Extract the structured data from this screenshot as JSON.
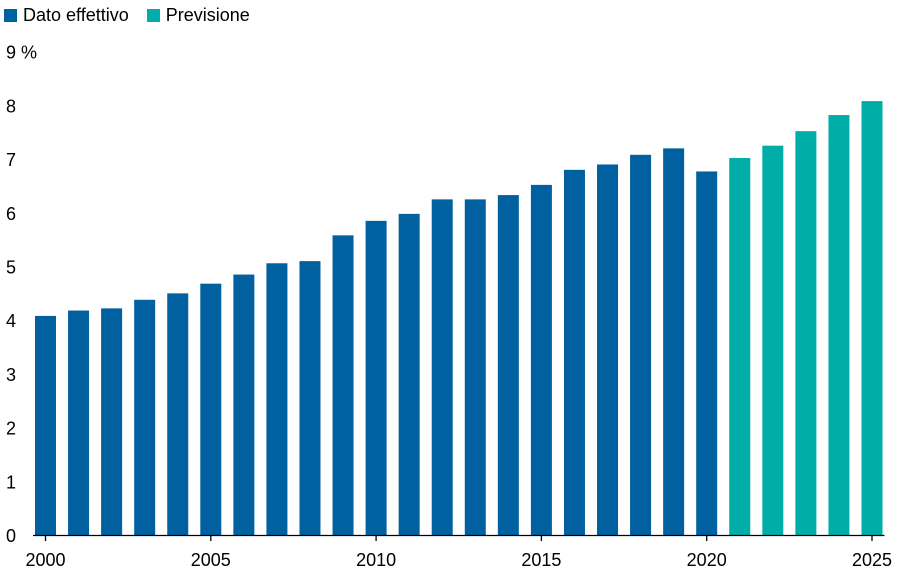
{
  "chart_data": {
    "type": "bar",
    "categories": [
      "2000",
      "2001",
      "2002",
      "2003",
      "2004",
      "2005",
      "2006",
      "2007",
      "2008",
      "2009",
      "2010",
      "2011",
      "2012",
      "2013",
      "2014",
      "2015",
      "2016",
      "2017",
      "2018",
      "2019",
      "2020",
      "2021",
      "2022",
      "2023",
      "2024",
      "2025"
    ],
    "series": [
      {
        "name": "Dato effettivo",
        "color": "#0060a0",
        "values": [
          4.08,
          4.18,
          4.22,
          4.38,
          4.5,
          4.68,
          4.85,
          5.06,
          5.1,
          5.58,
          5.85,
          5.98,
          6.25,
          6.25,
          6.33,
          6.52,
          6.8,
          6.9,
          7.08,
          7.2,
          6.77,
          null,
          null,
          null,
          null,
          null
        ]
      },
      {
        "name": "Previsione",
        "color": "#00aea7",
        "values": [
          null,
          null,
          null,
          null,
          null,
          null,
          null,
          null,
          null,
          null,
          null,
          null,
          null,
          null,
          null,
          null,
          null,
          null,
          null,
          null,
          null,
          7.02,
          7.25,
          7.52,
          7.82,
          8.08
        ]
      }
    ],
    "x_tick_labels": [
      "2000",
      "2005",
      "2010",
      "2015",
      "2020",
      "2025"
    ],
    "y_ticks": [
      0,
      1,
      2,
      3,
      4,
      5,
      6,
      7,
      8,
      9
    ],
    "y_top_label": "9 %",
    "ylim": [
      0,
      9
    ],
    "legend_position": "top-left",
    "grid": false
  }
}
